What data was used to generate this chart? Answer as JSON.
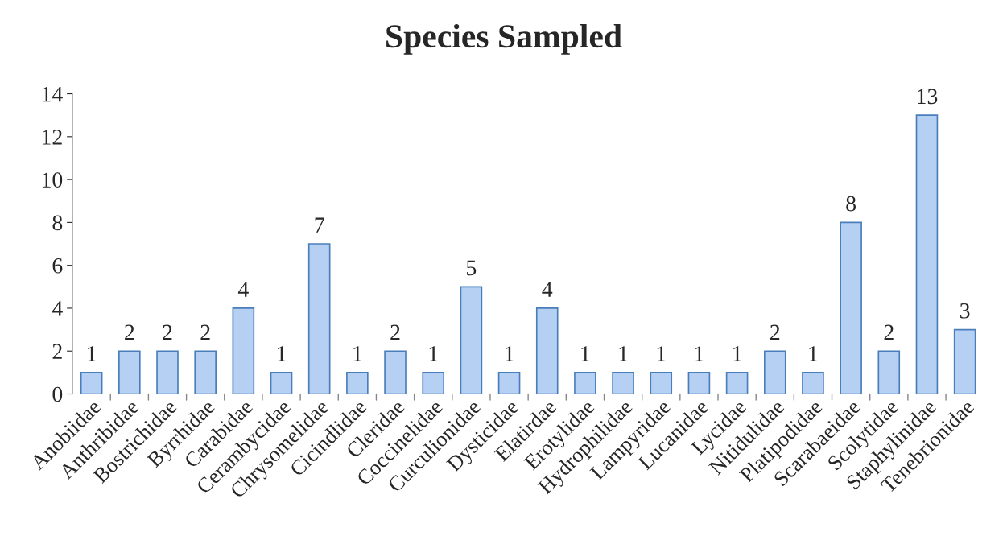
{
  "chart_data": {
    "type": "bar",
    "title": "Species Sampled",
    "categories": [
      "Anobiidae",
      "Anthribidae",
      "Bostrichidae",
      "Byrrhidae",
      "Carabidae",
      "Cerambycidae",
      "Chrysomelidae",
      "Cicindlidae",
      "Cleridae",
      "Coccinelidae",
      "Curculionidae",
      "Dysticidae",
      "Elatirdae",
      "Erotylidae",
      "Hydrophilidae",
      "Lampyridae",
      "Lucanidae",
      "Lycidae",
      "Nitidulidae",
      "Platipodidae",
      "Scarabaeidae",
      "Scolytidae",
      "Staphylinidae",
      "Tenebrionidae"
    ],
    "values": [
      1,
      2,
      2,
      2,
      4,
      1,
      7,
      1,
      2,
      1,
      5,
      1,
      4,
      1,
      1,
      1,
      1,
      1,
      2,
      1,
      8,
      2,
      13,
      3
    ],
    "color": "#b5d0f2",
    "ylim": [
      0,
      14
    ],
    "yticks": [
      0,
      2,
      4,
      6,
      8,
      10,
      12,
      14
    ],
    "grid": false,
    "legend": false,
    "data_labels": true
  }
}
